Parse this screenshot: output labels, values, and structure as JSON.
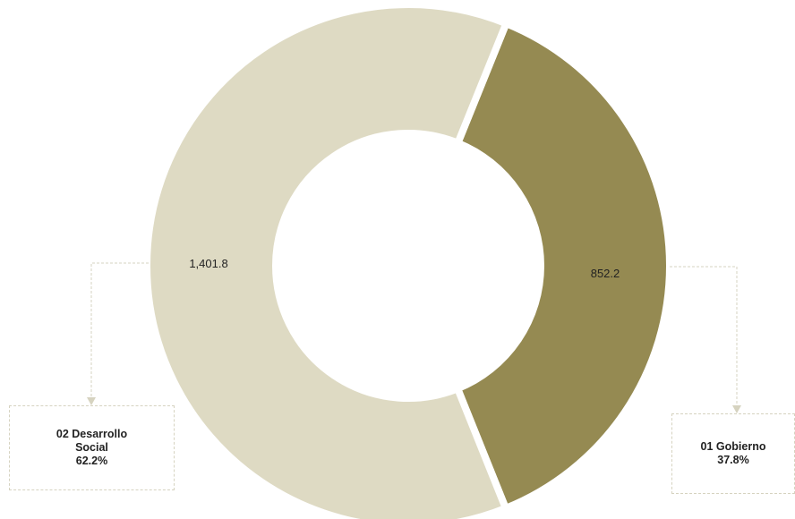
{
  "chart_data": {
    "type": "pie",
    "variant": "donut",
    "slices": [
      {
        "name_line1": "01 Gobierno",
        "name_line2": "",
        "value": 852.2,
        "value_label": "852.2",
        "percent_label": "37.8%",
        "color": "#958a52"
      },
      {
        "name_line1": "02 Desarrollo",
        "name_line2": "Social",
        "value": 1401.8,
        "value_label": "1,401.8",
        "percent_label": "62.2%",
        "color": "#dedac3"
      }
    ],
    "connector_color": "#d6d3c0"
  }
}
